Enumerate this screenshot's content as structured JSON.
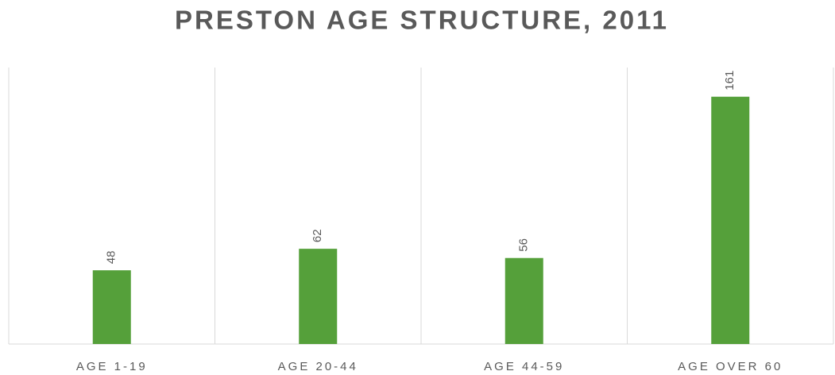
{
  "chart_data": {
    "type": "bar",
    "title": "PRESTON AGE STRUCTURE, 2011",
    "categories": [
      "AGE 1-19",
      "AGE 20-44",
      "AGE 44-59",
      "AGE OVER 60"
    ],
    "values": [
      48,
      62,
      56,
      161
    ],
    "color": "#55a03a",
    "ylim": [
      0,
      180
    ]
  }
}
